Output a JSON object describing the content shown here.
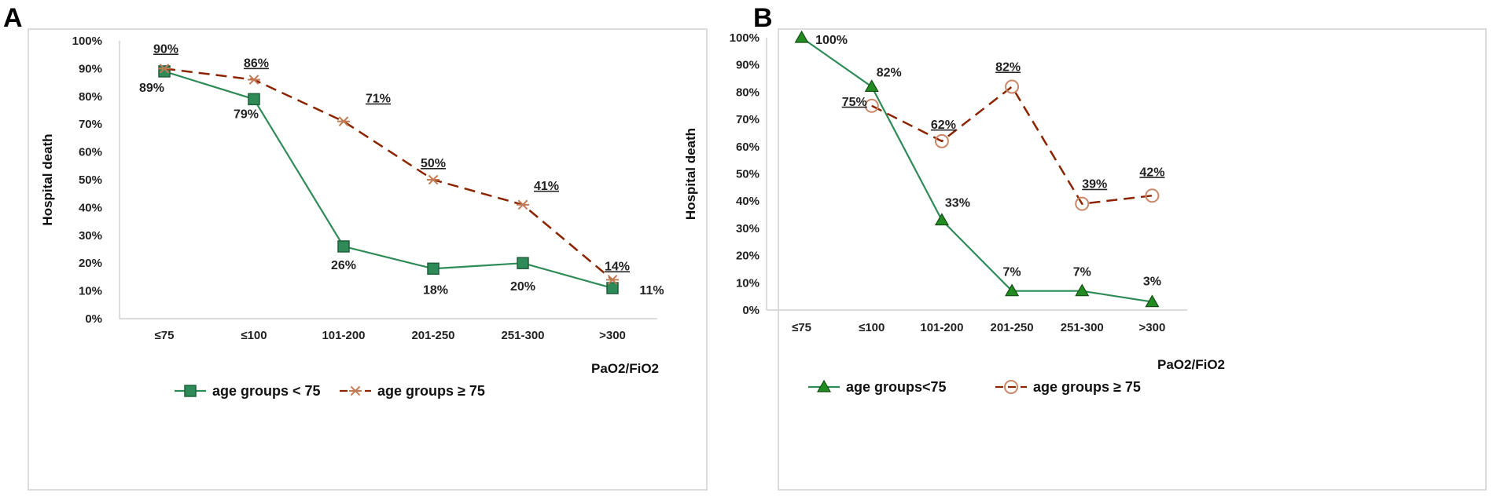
{
  "panels": [
    {
      "letter": "A",
      "chart_data": {
        "type": "line",
        "title": "",
        "xlabel": "PaO2/FiO2",
        "ylabel": "Hospital death",
        "ylim": [
          0,
          100
        ],
        "y_ticks": [
          "0%",
          "10%",
          "20%",
          "30%",
          "40%",
          "50%",
          "60%",
          "70%",
          "80%",
          "90%",
          "100%"
        ],
        "categories": [
          "≤75",
          "≤100",
          "101-200",
          "201-250",
          "251-300",
          ">300"
        ],
        "series": [
          {
            "name": "age groups < 75",
            "values": [
              89,
              79,
              26,
              18,
              20,
              11
            ],
            "labels": [
              "89%",
              "79%",
              "26%",
              "18%",
              "20%",
              "11%"
            ],
            "color": "#2e8b57",
            "marker": "square",
            "line": "solid"
          },
          {
            "name": "age groups ≥ 75",
            "values": [
              90,
              86,
              71,
              50,
              41,
              14
            ],
            "labels": [
              "90%",
              "86%",
              "71%",
              "50%",
              "41%",
              "14%"
            ],
            "color": "#8b2500",
            "marker": "asterisk",
            "line": "dashed"
          }
        ]
      }
    },
    {
      "letter": "B",
      "chart_data": {
        "type": "line",
        "title": "",
        "xlabel": "PaO2/FiO2",
        "ylabel": "Hospital death",
        "ylim": [
          0,
          100
        ],
        "y_ticks": [
          "0%",
          "10%",
          "20%",
          "30%",
          "40%",
          "50%",
          "60%",
          "70%",
          "80%",
          "90%",
          "100%"
        ],
        "categories": [
          "≤75",
          "≤100",
          "101-200",
          "201-250",
          "251-300",
          ">300"
        ],
        "series": [
          {
            "name": "age groups<75",
            "values": [
              100,
              82,
              33,
              7,
              7,
              3
            ],
            "labels": [
              "100%",
              "82%",
              "33%",
              "7%",
              "7%",
              "3%"
            ],
            "color": "#2e8b57",
            "marker": "triangle",
            "line": "solid"
          },
          {
            "name": "age groups ≥ 75",
            "values": [
              null,
              75,
              62,
              82,
              39,
              42
            ],
            "labels": [
              "",
              "75%",
              "62%",
              "82%",
              "39%",
              "42%"
            ],
            "color": "#8b2500",
            "marker": "circle",
            "line": "dashed"
          }
        ]
      }
    }
  ]
}
